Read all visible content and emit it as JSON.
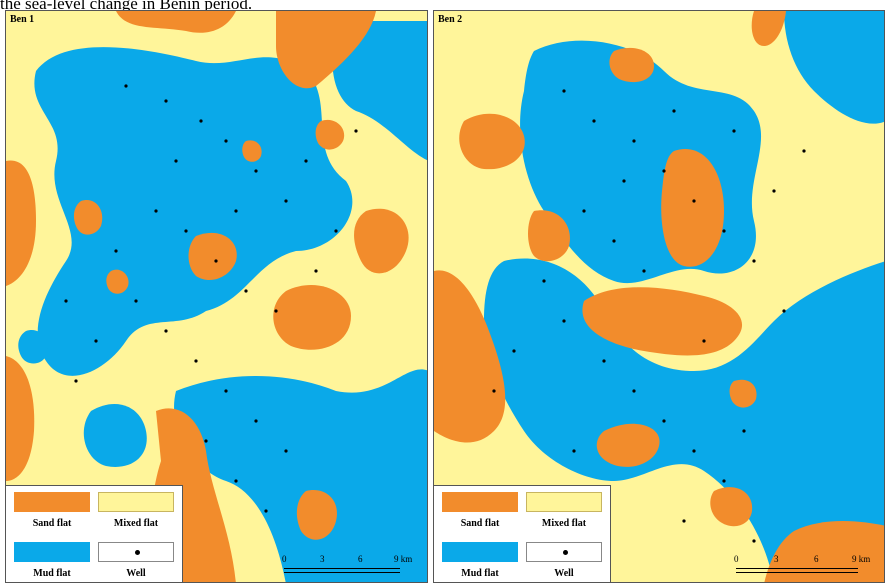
{
  "caption": "the sea-level change in Benin period.",
  "panels": [
    {
      "label": "Ben 1"
    },
    {
      "label": "Ben 2"
    }
  ],
  "legend": {
    "sand_flat": "Sand flat",
    "mixed_flat": "Mixed flat",
    "mud_flat": "Mud flat",
    "well": "Well"
  },
  "scale": {
    "ticks": [
      "0",
      "3",
      "6",
      "9 km"
    ]
  },
  "colors": {
    "sand_flat": "#f28c2c",
    "mixed_flat": "#fff59a",
    "mud_flat": "#0aa9e9",
    "well": "#000000"
  }
}
